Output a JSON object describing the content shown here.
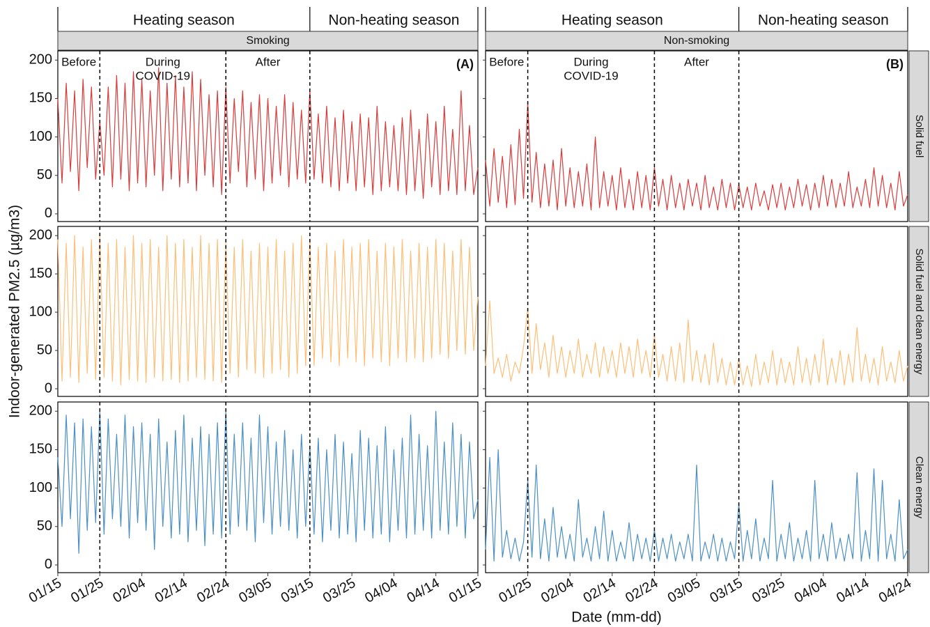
{
  "chart_data": {
    "type": "line",
    "y_label": "Indoor-generated PM2.5 (µg/m3)",
    "x_label": "Date (mm-dd)",
    "xlim": [
      0,
      100
    ],
    "ylim": [
      -10,
      212
    ],
    "yticks": [
      0,
      50,
      100,
      150,
      200
    ],
    "x": [
      0,
      1,
      2,
      3,
      4,
      5,
      6,
      7,
      8,
      9,
      10,
      11,
      12,
      13,
      14,
      15,
      16,
      17,
      18,
      19,
      20,
      21,
      22,
      23,
      24,
      25,
      26,
      27,
      28,
      29,
      30,
      31,
      32,
      33,
      34,
      35,
      36,
      37,
      38,
      39,
      40,
      41,
      42,
      43,
      44,
      45,
      46,
      47,
      48,
      49,
      50,
      51,
      52,
      53,
      54,
      55,
      56,
      57,
      58,
      59,
      60,
      61,
      62,
      63,
      64,
      65,
      66,
      67,
      68,
      69,
      70,
      71,
      72,
      73,
      74,
      75,
      76,
      77,
      78,
      79,
      80,
      81,
      82,
      83,
      84,
      85,
      86,
      87,
      88,
      89,
      90,
      91,
      92,
      93,
      94,
      95,
      96,
      97,
      98,
      99,
      100
    ],
    "rows": [
      {
        "label": "Solid fuel",
        "color": "#d93b3b"
      },
      {
        "label": "Solid fuel and clean energy",
        "color": "#fdbf78"
      },
      {
        "label": "Clean energy",
        "color": "#4a90c4"
      }
    ],
    "columns": [
      {
        "label": "Smoking",
        "tag": "(A)",
        "seasons": [
          "Heating season",
          "Non-heating season"
        ],
        "dividers": [
          10,
          40,
          60
        ],
        "periods": [
          [
            "Before"
          ],
          [
            "During",
            "COVID-19"
          ],
          [
            "After"
          ]
        ],
        "xticks": [
          {
            "value": 0,
            "label": "01/15"
          },
          {
            "value": 10,
            "label": "01/25"
          },
          {
            "value": 20,
            "label": "02/04"
          },
          {
            "value": 30,
            "label": "02/14"
          },
          {
            "value": 40,
            "label": "02/24"
          },
          {
            "value": 50,
            "label": "03/05"
          },
          {
            "value": 60,
            "label": "03/15"
          },
          {
            "value": 70,
            "label": "03/25"
          },
          {
            "value": 80,
            "label": "04/04"
          },
          {
            "value": 90,
            "label": "04/14"
          },
          {
            "value": 100,
            "label": "01/15"
          }
        ],
        "series": [
          {
            "values": [
              150,
              40,
              170,
              55,
              160,
              30,
              175,
              60,
              165,
              45,
              120,
              50,
              165,
              35,
              180,
              45,
              170,
              30,
              185,
              40,
              175,
              35,
              160,
              50,
              190,
              30,
              170,
              45,
              180,
              35,
              165,
              40,
              185,
              30,
              175,
              50,
              155,
              35,
              160,
              25,
              165,
              40,
              150,
              55,
              160,
              35,
              145,
              45,
              155,
              30,
              150,
              40,
              140,
              50,
              155,
              35,
              145,
              45,
              135,
              40,
              160,
              45,
              130,
              40,
              140,
              35,
              125,
              30,
              135,
              40,
              120,
              30,
              130,
              35,
              125,
              25,
              140,
              30,
              120,
              35,
              115,
              30,
              125,
              25,
              135,
              30,
              110,
              20,
              130,
              35,
              120,
              25,
              140,
              30,
              110,
              25,
              160,
              30,
              115,
              25,
              60
            ]
          },
          {
            "values": [
              195,
              10,
              190,
              15,
              200,
              8,
              185,
              20,
              195,
              12,
              200,
              15,
              190,
              10,
              195,
              5,
              185,
              12,
              200,
              10,
              190,
              8,
              195,
              15,
              185,
              10,
              200,
              12,
              190,
              8,
              195,
              10,
              185,
              15,
              200,
              12,
              190,
              10,
              195,
              8,
              190,
              20,
              185,
              15,
              195,
              25,
              180,
              20,
              190,
              15,
              185,
              20,
              195,
              25,
              180,
              15,
              190,
              20,
              200,
              30,
              195,
              30,
              185,
              40,
              190,
              35,
              180,
              30,
              195,
              40,
              185,
              35,
              190,
              30,
              195,
              40,
              180,
              35,
              190,
              30,
              185,
              40,
              195,
              35,
              180,
              40,
              190,
              35,
              185,
              40,
              195,
              45,
              190,
              40,
              180,
              50,
              195,
              45,
              185,
              50,
              120
            ]
          },
          {
            "values": [
              140,
              50,
              195,
              60,
              185,
              15,
              190,
              45,
              180,
              55,
              200,
              40,
              190,
              60,
              170,
              50,
              195,
              35,
              180,
              55,
              185,
              45,
              170,
              20,
              190,
              50,
              160,
              35,
              175,
              40,
              195,
              30,
              165,
              45,
              180,
              25,
              170,
              40,
              185,
              35,
              200,
              40,
              170,
              50,
              185,
              45,
              165,
              30,
              195,
              55,
              180,
              40,
              160,
              50,
              175,
              45,
              150,
              35,
              170,
              50,
              155,
              40,
              165,
              30,
              150,
              45,
              170,
              35,
              160,
              40,
              145,
              30,
              175,
              45,
              165,
              35,
              155,
              40,
              180,
              30,
              150,
              45,
              165,
              35,
              195,
              40,
              170,
              45,
              155,
              35,
              200,
              45,
              160,
              40,
              185,
              50,
              170,
              35,
              160,
              60,
              85
            ]
          }
        ]
      },
      {
        "label": "Non-smoking",
        "tag": "(B)",
        "seasons": [
          "Heating season",
          "Non-heating season"
        ],
        "dividers": [
          10,
          40,
          60
        ],
        "periods": [
          [
            "Before"
          ],
          [
            "During",
            "COVID-19"
          ],
          [
            "After"
          ]
        ],
        "xticks": [
          {
            "value": 10,
            "label": "01/25"
          },
          {
            "value": 20,
            "label": "02/04"
          },
          {
            "value": 30,
            "label": "02/14"
          },
          {
            "value": 40,
            "label": "02/24"
          },
          {
            "value": 50,
            "label": "03/05"
          },
          {
            "value": 60,
            "label": "03/15"
          },
          {
            "value": 70,
            "label": "03/25"
          },
          {
            "value": 80,
            "label": "04/04"
          },
          {
            "value": 90,
            "label": "04/14"
          },
          {
            "value": 100,
            "label": "04/24"
          }
        ],
        "series": [
          {
            "values": [
              70,
              10,
              85,
              15,
              75,
              8,
              90,
              12,
              110,
              20,
              145,
              15,
              80,
              8,
              65,
              10,
              70,
              5,
              85,
              10,
              60,
              8,
              55,
              10,
              65,
              5,
              100,
              8,
              55,
              10,
              50,
              5,
              60,
              8,
              45,
              5,
              55,
              8,
              50,
              5,
              60,
              10,
              45,
              5,
              50,
              8,
              40,
              5,
              45,
              10,
              40,
              5,
              50,
              8,
              35,
              5,
              45,
              8,
              40,
              5,
              38,
              8,
              35,
              5,
              40,
              10,
              30,
              5,
              38,
              8,
              40,
              5,
              35,
              8,
              45,
              10,
              38,
              5,
              40,
              8,
              50,
              10,
              45,
              8,
              40,
              10,
              55,
              8,
              35,
              10,
              45,
              8,
              60,
              10,
              50,
              8,
              40,
              5,
              55,
              10,
              25
            ]
          },
          {
            "values": [
              30,
              115,
              20,
              40,
              15,
              45,
              10,
              35,
              20,
              55,
              105,
              20,
              85,
              25,
              60,
              15,
              70,
              20,
              55,
              15,
              50,
              20,
              65,
              15,
              45,
              20,
              60,
              15,
              55,
              20,
              50,
              15,
              60,
              20,
              55,
              15,
              65,
              20,
              50,
              15,
              70,
              15,
              45,
              10,
              55,
              10,
              60,
              8,
              90,
              10,
              50,
              8,
              45,
              5,
              60,
              8,
              40,
              5,
              35,
              5,
              40,
              5,
              30,
              3,
              45,
              5,
              35,
              8,
              50,
              5,
              40,
              8,
              35,
              5,
              55,
              8,
              40,
              5,
              45,
              8,
              65,
              5,
              40,
              8,
              50,
              5,
              45,
              8,
              80,
              10,
              45,
              8,
              40,
              5,
              55,
              10,
              35,
              8,
              50,
              10,
              30
            ]
          },
          {
            "values": [
              20,
              140,
              5,
              150,
              10,
              45,
              8,
              35,
              5,
              30,
              110,
              10,
              130,
              8,
              60,
              5,
              75,
              10,
              50,
              8,
              40,
              5,
              85,
              10,
              35,
              5,
              50,
              8,
              70,
              5,
              45,
              5,
              30,
              8,
              55,
              5,
              40,
              8,
              35,
              5,
              45,
              5,
              35,
              8,
              40,
              5,
              30,
              8,
              40,
              5,
              130,
              5,
              30,
              8,
              40,
              5,
              35,
              5,
              30,
              8,
              80,
              5,
              45,
              8,
              60,
              5,
              35,
              8,
              110,
              5,
              40,
              8,
              55,
              5,
              35,
              8,
              45,
              5,
              110,
              8,
              40,
              5,
              55,
              8,
              35,
              5,
              40,
              8,
              120,
              5,
              45,
              8,
              125,
              5,
              110,
              8,
              40,
              5,
              85,
              8,
              20
            ]
          }
        ]
      }
    ]
  }
}
